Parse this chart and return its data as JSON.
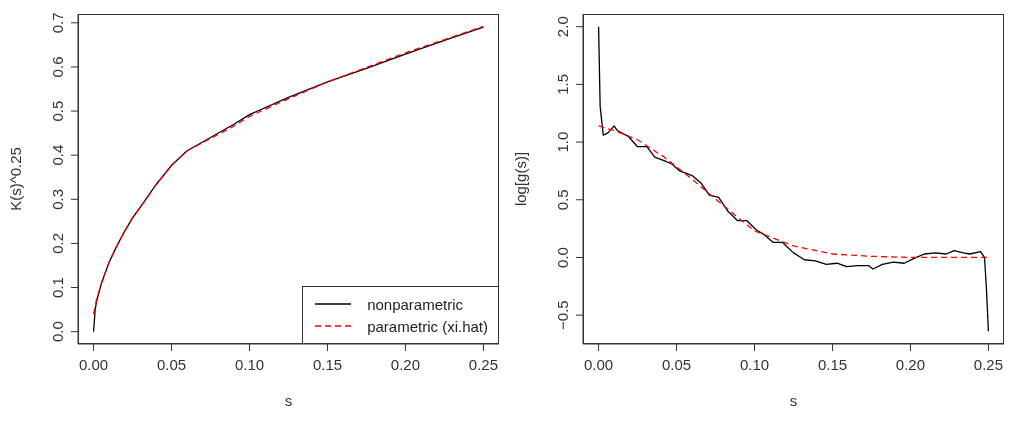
{
  "chart_data": [
    {
      "type": "line",
      "xlabel": "s",
      "ylabel": "K(s)^0.25",
      "xlim": [
        -0.01,
        0.26
      ],
      "ylim": [
        -0.028,
        0.72
      ],
      "xticks": [
        {
          "value": 0,
          "label": "0.00"
        },
        {
          "value": 0.05,
          "label": "0.05"
        },
        {
          "value": 0.1,
          "label": "0.10"
        },
        {
          "value": 0.15,
          "label": "0.15"
        },
        {
          "value": 0.2,
          "label": "0.20"
        },
        {
          "value": 0.25,
          "label": "0.25"
        }
      ],
      "yticks": [
        {
          "value": 0,
          "label": "0.0"
        },
        {
          "value": 0.1,
          "label": "0.1"
        },
        {
          "value": 0.2,
          "label": "0.2"
        },
        {
          "value": 0.3,
          "label": "0.3"
        },
        {
          "value": 0.4,
          "label": "0.4"
        },
        {
          "value": 0.5,
          "label": "0.5"
        },
        {
          "value": 0.6,
          "label": "0.6"
        },
        {
          "value": 0.7,
          "label": "0.7"
        }
      ],
      "grid": false,
      "legend": "bottom right",
      "marker": "none",
      "series": [
        {
          "name": "nonparametric",
          "color": "#000000",
          "line_style": "solid",
          "x": [
            0,
            0.001,
            0.002,
            0.005,
            0.01,
            0.015,
            0.02,
            0.025,
            0.03,
            0.04,
            0.05,
            0.06,
            0.075,
            0.09,
            0.1,
            0.125,
            0.15,
            0.175,
            0.2,
            0.225,
            0.25
          ],
          "values": [
            0,
            0.05,
            0.07,
            0.109,
            0.158,
            0.195,
            0.228,
            0.258,
            0.282,
            0.333,
            0.377,
            0.41,
            0.44,
            0.47,
            0.492,
            0.531,
            0.566,
            0.597,
            0.629,
            0.66,
            0.69
          ]
        },
        {
          "name": "parametric (xi.hat)",
          "color": "#ff0000",
          "line_style": "dashed",
          "x": [
            0,
            0.001,
            0.002,
            0.005,
            0.01,
            0.015,
            0.02,
            0.025,
            0.03,
            0.04,
            0.05,
            0.06,
            0.075,
            0.09,
            0.1,
            0.125,
            0.15,
            0.175,
            0.2,
            0.225,
            0.25
          ],
          "values": [
            0.04,
            0.058,
            0.075,
            0.11,
            0.158,
            0.195,
            0.228,
            0.258,
            0.282,
            0.333,
            0.377,
            0.41,
            0.438,
            0.466,
            0.488,
            0.528,
            0.566,
            0.599,
            0.632,
            0.662,
            0.692
          ]
        }
      ]
    },
    {
      "type": "line",
      "xlabel": "s",
      "ylabel": "log[g(s)]",
      "xlim": [
        -0.01,
        0.26
      ],
      "ylim": [
        -0.75,
        2.11
      ],
      "xticks": [
        {
          "value": 0,
          "label": "0.00"
        },
        {
          "value": 0.05,
          "label": "0.05"
        },
        {
          "value": 0.1,
          "label": "0.10"
        },
        {
          "value": 0.15,
          "label": "0.15"
        },
        {
          "value": 0.2,
          "label": "0.20"
        },
        {
          "value": 0.25,
          "label": "0.25"
        }
      ],
      "yticks": [
        {
          "value": -0.5,
          "label": "−0.5"
        },
        {
          "value": 0,
          "label": "0.0"
        },
        {
          "value": 0.5,
          "label": "0.5"
        },
        {
          "value": 1,
          "label": "1.0"
        },
        {
          "value": 1.5,
          "label": "1.5"
        },
        {
          "value": 2,
          "label": "2.0"
        }
      ],
      "grid": false,
      "marker": "none",
      "series": [
        {
          "color": "#000000",
          "line_style": "solid",
          "x": [
            0,
            0.001,
            0.003,
            0.006,
            0.01,
            0.012,
            0.019,
            0.025,
            0.031,
            0.036,
            0.042,
            0.047,
            0.052,
            0.06,
            0.066,
            0.071,
            0.077,
            0.083,
            0.089,
            0.095,
            0.101,
            0.106,
            0.112,
            0.118,
            0.125,
            0.132,
            0.139,
            0.146,
            0.153,
            0.159,
            0.166,
            0.173,
            0.176,
            0.182,
            0.189,
            0.196,
            0.202,
            0.209,
            0.216,
            0.223,
            0.228,
            0.234,
            0.238,
            0.245,
            0.2475,
            0.2487,
            0.25
          ],
          "values": [
            2.0,
            1.31,
            1.06,
            1.08,
            1.14,
            1.1,
            1.05,
            0.96,
            0.96,
            0.87,
            0.84,
            0.81,
            0.75,
            0.71,
            0.64,
            0.54,
            0.52,
            0.4,
            0.32,
            0.32,
            0.24,
            0.2,
            0.13,
            0.13,
            0.04,
            -0.02,
            -0.03,
            -0.06,
            -0.05,
            -0.08,
            -0.07,
            -0.07,
            -0.1,
            -0.06,
            -0.04,
            -0.05,
            -0.01,
            0.03,
            0.04,
            0.03,
            0.06,
            0.04,
            0.03,
            0.05,
            0.0,
            -0.26,
            -0.64
          ]
        },
        {
          "color": "#ff0000",
          "line_style": "dashed",
          "x": [
            0,
            0.01,
            0.025,
            0.042,
            0.058,
            0.08,
            0.1,
            0.125,
            0.15,
            0.175,
            0.2,
            0.25
          ],
          "values": [
            1.14,
            1.1,
            1.02,
            0.87,
            0.7,
            0.45,
            0.23,
            0.1,
            0.03,
            0.01,
            0,
            0
          ]
        }
      ]
    }
  ]
}
